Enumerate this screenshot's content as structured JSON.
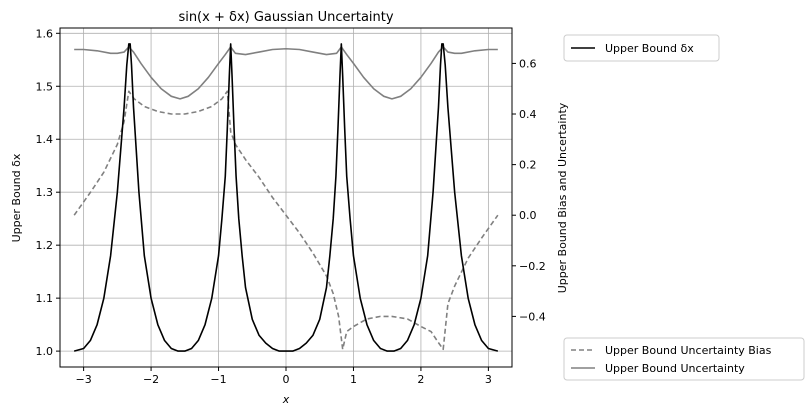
{
  "chart_data": {
    "type": "line",
    "title": "sin(x + δx) Gaussian Uncertainty",
    "xlabel": "x",
    "ylabel_left": "Upper Bound δx",
    "ylabel_right": "Upper Bound Bias and Uncertainty",
    "xlim": [
      -3.35,
      3.35
    ],
    "ylim_left": [
      0.97,
      1.61
    ],
    "ylim_right": [
      -0.6,
      0.74
    ],
    "xticks": [
      -3,
      -2,
      -1,
      0,
      1,
      2,
      3
    ],
    "xtick_labels": [
      "−3",
      "−2",
      "−1",
      "0",
      "1",
      "2",
      "3"
    ],
    "yticks_left": [
      1.0,
      1.1,
      1.2,
      1.3,
      1.4,
      1.5,
      1.6
    ],
    "ytick_labels_left": [
      "1.0",
      "1.1",
      "1.2",
      "1.3",
      "1.4",
      "1.5",
      "1.6"
    ],
    "yticks_right": [
      -0.4,
      -0.2,
      0.0,
      0.2,
      0.4,
      0.6
    ],
    "ytick_labels_right": [
      "−0.4",
      "−0.2",
      "0.0",
      "0.2",
      "0.4",
      "0.6"
    ],
    "grid": true,
    "colors": {
      "delta": "#000000",
      "bias": "#808080",
      "uncertainty": "#808080"
    },
    "legend_top": {
      "placement": "outside top-right",
      "entries": [
        {
          "label": "Upper Bound δx",
          "style": "solid",
          "color": "#000000"
        }
      ]
    },
    "legend_bottom": {
      "placement": "outside bottom-right",
      "entries": [
        {
          "label": "Upper Bound Uncertainty Bias",
          "style": "dashed",
          "color": "#808080"
        },
        {
          "label": "Upper Bound Uncertainty",
          "style": "solid",
          "color": "#808080"
        }
      ]
    },
    "series": [
      {
        "name": "Upper Bound δx",
        "axis": "left",
        "style": "solid",
        "color": "#000000",
        "x": [
          -3.14,
          -3.0,
          -2.9,
          -2.8,
          -2.7,
          -2.6,
          -2.5,
          -2.45,
          -2.4,
          -2.36,
          -2.33,
          -2.31,
          -2.29,
          -2.26,
          -2.22,
          -2.18,
          -2.1,
          -2.0,
          -1.9,
          -1.8,
          -1.7,
          -1.6,
          -1.57,
          -1.5,
          -1.4,
          -1.3,
          -1.2,
          -1.1,
          -1.0,
          -0.95,
          -0.9,
          -0.87,
          -0.84,
          -0.82,
          -0.8,
          -0.77,
          -0.74,
          -0.7,
          -0.65,
          -0.6,
          -0.5,
          -0.4,
          -0.3,
          -0.2,
          -0.1,
          0.0,
          0.1,
          0.2,
          0.3,
          0.4,
          0.5,
          0.6,
          0.65,
          0.7,
          0.74,
          0.77,
          0.8,
          0.82,
          0.84,
          0.87,
          0.9,
          0.95,
          1.0,
          1.1,
          1.2,
          1.3,
          1.4,
          1.5,
          1.57,
          1.6,
          1.7,
          1.8,
          1.9,
          2.0,
          2.1,
          2.18,
          2.22,
          2.26,
          2.29,
          2.31,
          2.33,
          2.36,
          2.4,
          2.45,
          2.5,
          2.6,
          2.7,
          2.8,
          2.9,
          3.0,
          3.14
        ],
        "y": [
          1.0,
          1.005,
          1.02,
          1.05,
          1.1,
          1.18,
          1.3,
          1.38,
          1.46,
          1.54,
          1.58,
          1.58,
          1.54,
          1.46,
          1.38,
          1.3,
          1.18,
          1.1,
          1.05,
          1.02,
          1.005,
          1.0,
          1.0,
          1.0,
          1.005,
          1.02,
          1.05,
          1.1,
          1.18,
          1.25,
          1.33,
          1.42,
          1.52,
          1.58,
          1.52,
          1.42,
          1.33,
          1.25,
          1.18,
          1.12,
          1.06,
          1.03,
          1.015,
          1.005,
          1.0,
          1.0,
          1.0,
          1.005,
          1.015,
          1.03,
          1.06,
          1.12,
          1.18,
          1.25,
          1.33,
          1.42,
          1.52,
          1.58,
          1.52,
          1.42,
          1.33,
          1.25,
          1.18,
          1.1,
          1.05,
          1.02,
          1.005,
          1.0,
          1.0,
          1.0,
          1.005,
          1.02,
          1.05,
          1.1,
          1.18,
          1.3,
          1.38,
          1.46,
          1.54,
          1.58,
          1.58,
          1.54,
          1.46,
          1.38,
          1.3,
          1.18,
          1.1,
          1.05,
          1.02,
          1.005,
          1.0
        ]
      },
      {
        "name": "Upper Bound Uncertainty Bias",
        "axis": "right",
        "style": "dashed",
        "color": "#808080",
        "x": [
          -3.14,
          -2.9,
          -2.7,
          -2.5,
          -2.4,
          -2.33,
          -2.25,
          -2.1,
          -1.9,
          -1.7,
          -1.5,
          -1.3,
          -1.1,
          -0.95,
          -0.87,
          -0.82,
          -0.75,
          -0.6,
          -0.4,
          -0.2,
          0.0,
          0.2,
          0.4,
          0.6,
          0.7,
          0.78,
          0.84,
          0.9,
          1.0,
          1.2,
          1.4,
          1.57,
          1.8,
          2.0,
          2.15,
          2.25,
          2.33,
          2.4,
          2.5,
          2.7,
          2.9,
          3.14
        ],
        "y": [
          0.0,
          0.09,
          0.17,
          0.28,
          0.37,
          0.49,
          0.46,
          0.43,
          0.41,
          0.4,
          0.4,
          0.41,
          0.43,
          0.46,
          0.49,
          0.33,
          0.28,
          0.22,
          0.15,
          0.07,
          0.0,
          -0.07,
          -0.15,
          -0.24,
          -0.31,
          -0.4,
          -0.53,
          -0.46,
          -0.44,
          -0.41,
          -0.4,
          -0.4,
          -0.41,
          -0.44,
          -0.46,
          -0.5,
          -0.53,
          -0.35,
          -0.28,
          -0.17,
          -0.09,
          0.0
        ]
      },
      {
        "name": "Upper Bound Uncertainty",
        "axis": "right",
        "style": "solid",
        "color": "#808080",
        "x": [
          -3.14,
          -3.0,
          -2.8,
          -2.6,
          -2.5,
          -2.4,
          -2.33,
          -2.26,
          -2.15,
          -2.0,
          -1.85,
          -1.7,
          -1.57,
          -1.45,
          -1.3,
          -1.15,
          -1.0,
          -0.9,
          -0.82,
          -0.75,
          -0.6,
          -0.4,
          -0.2,
          0.0,
          0.2,
          0.4,
          0.6,
          0.75,
          0.82,
          0.9,
          1.0,
          1.15,
          1.3,
          1.45,
          1.57,
          1.7,
          1.85,
          2.0,
          2.15,
          2.26,
          2.33,
          2.4,
          2.5,
          2.6,
          2.8,
          3.0,
          3.14
        ],
        "y": [
          0.655,
          0.655,
          0.65,
          0.64,
          0.64,
          0.645,
          0.665,
          0.645,
          0.6,
          0.545,
          0.5,
          0.47,
          0.46,
          0.47,
          0.5,
          0.545,
          0.6,
          0.635,
          0.665,
          0.64,
          0.635,
          0.645,
          0.655,
          0.658,
          0.655,
          0.645,
          0.635,
          0.64,
          0.665,
          0.635,
          0.6,
          0.545,
          0.5,
          0.47,
          0.46,
          0.47,
          0.5,
          0.545,
          0.6,
          0.645,
          0.665,
          0.645,
          0.64,
          0.64,
          0.65,
          0.655,
          0.655
        ]
      }
    ]
  }
}
